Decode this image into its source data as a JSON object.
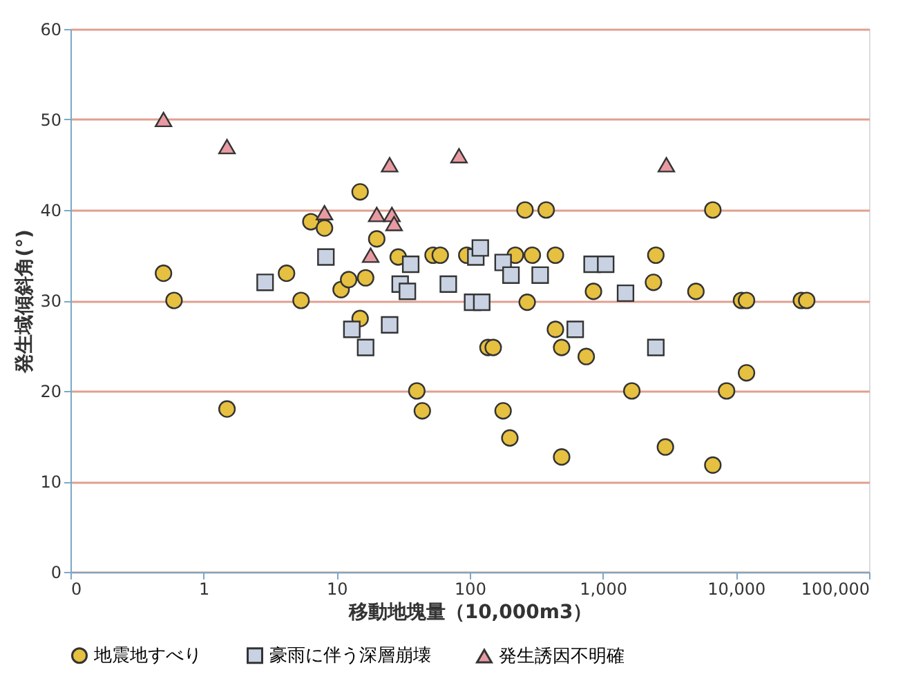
{
  "chart_data": {
    "type": "scatter",
    "xlabel": "移動地塊量（10,000m3）",
    "ylabel": "発生域傾斜角(°)",
    "log": "x",
    "xlim": [
      0.1,
      100000
    ],
    "xticks": [
      {
        "value": 0.1,
        "label": "0"
      },
      1,
      10,
      100,
      {
        "value": 1000,
        "label": "1,000"
      },
      {
        "value": 10000,
        "label": "10,000"
      },
      {
        "value": 100000,
        "label": "100,000"
      }
    ],
    "ylim": [
      0,
      60
    ],
    "yticks": [
      0,
      10,
      20,
      30,
      40,
      50,
      60
    ],
    "grid": "y",
    "legend": "bottom",
    "series": [
      {
        "name": "地震地すべり",
        "color": "#e6c040",
        "marker": "circle",
        "x": [
          0.5,
          0.6,
          1.5,
          4.2,
          5.4,
          6.4,
          8.1,
          10.8,
          12.3,
          15,
          15,
          16.5,
          20,
          29,
          40,
          44,
          53,
          60,
          95,
          137,
          150,
          178,
          200,
          220,
          260,
          270,
          295,
          375,
          440,
          440,
          490,
          490,
          750,
          850,
          1650,
          2400,
          2500,
          2950,
          5000,
          6700,
          6700,
          8500,
          11000,
          12000,
          12000,
          31000,
          34000
        ],
        "values": [
          33,
          30,
          18,
          33,
          30,
          38.7,
          38,
          31.2,
          32.3,
          42,
          28,
          32.5,
          36.8,
          34.8,
          20,
          17.8,
          35,
          35,
          35,
          24.8,
          24.8,
          17.8,
          14.8,
          35,
          40,
          29.8,
          35,
          40,
          35,
          26.8,
          24.8,
          12.7,
          23.8,
          31,
          20,
          32,
          35,
          13.8,
          31,
          40,
          11.8,
          20,
          30,
          30,
          22,
          30,
          30
        ]
      },
      {
        "name": "豪雨に伴う深層崩壊",
        "color": "#c8d2e2",
        "marker": "square",
        "x": [
          2.9,
          8.3,
          13,
          16.5,
          25,
          30,
          34,
          36,
          69,
          105,
          111,
          120,
          123,
          178,
          204,
          338,
          620,
          830,
          1050,
          1480,
          2500
        ],
        "values": [
          32,
          34.8,
          26.8,
          24.8,
          27.3,
          31.8,
          31,
          34,
          31.8,
          29.8,
          34.8,
          35.8,
          29.8,
          34.2,
          32.8,
          32.8,
          26.8,
          34,
          34,
          30.8,
          24.8
        ]
      },
      {
        "name": "発生誘因不明確",
        "color": "#e89aa2",
        "marker": "triangle",
        "x": [
          0.5,
          1.5,
          8.1,
          18,
          20,
          25,
          26,
          27,
          83,
          3000
        ],
        "values": [
          50,
          47,
          39.7,
          35,
          39.5,
          45,
          39.5,
          38.5,
          46,
          45
        ]
      }
    ]
  }
}
